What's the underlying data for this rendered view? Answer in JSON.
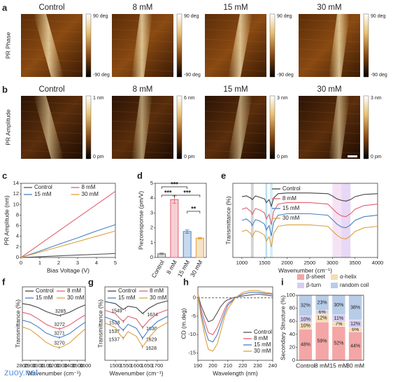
{
  "image_rows": [
    {
      "panel": "a",
      "ylabel": "PR Phase",
      "images": [
        {
          "title": "Control",
          "scale_max": "90 deg",
          "scale_min": "-90 deg"
        },
        {
          "title": "8 mM",
          "scale_max": "90 deg",
          "scale_min": "-90 deg"
        },
        {
          "title": "15 mM",
          "scale_max": "90 deg",
          "scale_min": "-90 deg"
        },
        {
          "title": "30 mM",
          "scale_max": "90 deg",
          "scale_min": "-90 deg"
        }
      ]
    },
    {
      "panel": "b",
      "ylabel": "PR Amplitude",
      "images": [
        {
          "title": "Control",
          "scale_max": "1 nm",
          "scale_min": "0 pm"
        },
        {
          "title": "8 mM",
          "scale_max": "6 nm",
          "scale_min": "0 pm"
        },
        {
          "title": "15 mM",
          "scale_max": "3 nm",
          "scale_min": "0 pm"
        },
        {
          "title": "30 mM",
          "scale_max": "3 nm",
          "scale_min": "0 pm"
        }
      ]
    }
  ],
  "chart_data": [
    {
      "panel": "c",
      "type": "line",
      "xlabel": "Bias Voltage (V)",
      "ylabel": "PR Amplitude (nm)",
      "x": [
        0,
        1,
        2,
        3,
        4,
        5
      ],
      "xlim": [
        0,
        5
      ],
      "xticks": [
        0,
        1,
        2,
        3,
        4,
        5
      ],
      "ylim": [
        0,
        14
      ],
      "yticks": [
        0,
        2,
        4,
        6,
        8,
        10,
        12,
        14
      ],
      "legend": "top-left",
      "series": [
        {
          "name": "Control",
          "color": "#555555",
          "values": [
            0,
            0.15,
            0.3,
            0.45,
            0.6,
            0.75
          ]
        },
        {
          "name": "8 mM",
          "color": "#e06070",
          "values": [
            0,
            2.5,
            5,
            7.5,
            10,
            12.5
          ]
        },
        {
          "name": "15 mM",
          "color": "#4a80c0",
          "values": [
            0,
            1.2,
            2.5,
            3.7,
            5,
            6.2
          ]
        },
        {
          "name": "30 mM",
          "color": "#e0a040",
          "values": [
            0,
            1,
            2,
            3,
            4,
            5
          ]
        }
      ]
    },
    {
      "panel": "d",
      "type": "bar",
      "ylabel": "Piezoresponse (pm/V)",
      "categories": [
        "Control",
        "8 mM",
        "15 mM",
        "30 mM"
      ],
      "values": [
        0.25,
        3.9,
        1.75,
        1.3
      ],
      "errors": [
        0.05,
        0.25,
        0.12,
        0.06
      ],
      "colors": [
        "#777777",
        "#e06070",
        "#4a80c0",
        "#e0a040"
      ],
      "ylim": [
        0,
        5
      ],
      "yticks": [
        0,
        1,
        2,
        3,
        4,
        5
      ],
      "significance": [
        {
          "from": "Control",
          "to": "8 mM",
          "label": "***"
        },
        {
          "from": "Control",
          "to": "15 mM",
          "label": "***"
        },
        {
          "from": "8 mM",
          "to": "30 mM",
          "label": "***"
        },
        {
          "from": "15 mM",
          "to": "30 mM",
          "label": "**"
        }
      ]
    },
    {
      "panel": "e",
      "type": "line",
      "xlabel": "Wavenumber (cm⁻¹)",
      "ylabel": "Transmittance (%)",
      "x": [
        1000,
        1100,
        1200,
        1230,
        1300,
        1400,
        1500,
        1540,
        1600,
        1650,
        1700,
        1800,
        2000,
        2500,
        2900,
        3000,
        3100,
        3200,
        3300,
        3400,
        3500,
        3700,
        4000
      ],
      "xlim": [
        800,
        4000
      ],
      "xticks": [
        1000,
        1500,
        2000,
        2500,
        3000,
        3500,
        4000
      ],
      "ylim": [
        0,
        10
      ],
      "legend": "right",
      "bands": [
        {
          "from": 1200,
          "to": 1260,
          "color": "#c8c8c8"
        },
        {
          "from": 1520,
          "to": 1560,
          "color": "#a8d8e8"
        },
        {
          "from": 1620,
          "to": 1680,
          "color": "#cde9f2"
        },
        {
          "from": 3000,
          "to": 3200,
          "color": "#f3dcf3"
        },
        {
          "from": 3200,
          "to": 3400,
          "color": "#e2cdf2"
        }
      ],
      "series": [
        {
          "name": "Control",
          "color": "#444444",
          "values": [
            8.2,
            8.3,
            8.0,
            7.8,
            8.3,
            8.1,
            7.9,
            7.4,
            7.8,
            6.9,
            8.0,
            8.6,
            8.7,
            8.7,
            8.6,
            8.3,
            7.9,
            7.7,
            7.6,
            7.8,
            8.2,
            8.5,
            8.6
          ]
        },
        {
          "name": "8 mM",
          "color": "#e06070",
          "values": [
            6.5,
            6.7,
            6.2,
            5.8,
            6.6,
            6.4,
            6.0,
            5.2,
            5.8,
            4.4,
            6.2,
            7.2,
            7.4,
            7.4,
            7.2,
            6.6,
            6.0,
            5.6,
            5.5,
            5.9,
            6.5,
            7.0,
            7.2
          ]
        },
        {
          "name": "15 mM",
          "color": "#4a80c0",
          "values": [
            5.0,
            5.2,
            4.7,
            4.3,
            5.1,
            4.9,
            4.5,
            3.7,
            4.3,
            2.9,
            4.7,
            5.7,
            5.9,
            5.9,
            5.7,
            5.1,
            4.5,
            4.1,
            4.0,
            4.4,
            5.0,
            5.5,
            5.7
          ]
        },
        {
          "name": "30 mM",
          "color": "#e0a040",
          "values": [
            3.5,
            3.7,
            3.2,
            2.8,
            3.6,
            3.4,
            3.0,
            2.2,
            2.8,
            1.4,
            3.2,
            4.2,
            4.4,
            4.4,
            4.2,
            3.6,
            3.0,
            2.6,
            2.5,
            2.9,
            3.5,
            4.0,
            4.2
          ]
        }
      ]
    },
    {
      "panel": "f",
      "type": "line",
      "xlabel": "Wavenumber (cm⁻¹)",
      "ylabel": "Transmittance (%)",
      "x": [
        2800,
        2900,
        3000,
        3100,
        3200,
        3270,
        3300,
        3400,
        3500,
        3600
      ],
      "xlim": [
        2800,
        3600
      ],
      "xticks": [
        2800,
        2900,
        3000,
        3100,
        3200,
        3300,
        3400,
        3500,
        3600
      ],
      "ylim": [
        0,
        11
      ],
      "legend": "top",
      "series": [
        {
          "name": "Control",
          "color": "#444444",
          "values": [
            8.5,
            8.3,
            7.9,
            7.3,
            6.9,
            6.7,
            6.8,
            7.2,
            7.8,
            8.3
          ],
          "peaks": [
            3285
          ]
        },
        {
          "name": "8 mM",
          "color": "#e06070",
          "values": [
            7.2,
            6.9,
            6.2,
            5.4,
            4.9,
            4.7,
            4.8,
            5.3,
            6.1,
            6.8
          ],
          "peaks": [
            3272
          ]
        },
        {
          "name": "15 mM",
          "color": "#4a80c0",
          "values": [
            6.0,
            5.7,
            5.0,
            4.1,
            3.6,
            3.4,
            3.5,
            4.0,
            4.9,
            5.7
          ],
          "peaks": [
            3271
          ]
        },
        {
          "name": "30 mM",
          "color": "#e0a040",
          "values": [
            5.0,
            4.6,
            3.7,
            2.7,
            2.1,
            1.9,
            2.0,
            2.6,
            3.7,
            4.7
          ],
          "peaks": [
            3270
          ]
        }
      ]
    },
    {
      "panel": "g",
      "type": "line",
      "xlabel": "Wavenumber (cm⁻¹)",
      "ylabel": "Transmittance (%)",
      "x": [
        1450,
        1500,
        1520,
        1538,
        1560,
        1600,
        1630,
        1660,
        1700,
        1750
      ],
      "xlim": [
        1450,
        1750
      ],
      "xticks": [
        1500,
        1550,
        1600,
        1650,
        1700
      ],
      "ylim": [
        0,
        11
      ],
      "legend": "top",
      "series": [
        {
          "name": "Control",
          "color": "#444444",
          "values": [
            8.8,
            8.5,
            8.0,
            7.6,
            8.1,
            7.9,
            7.0,
            7.8,
            8.5,
            8.9
          ],
          "peaks": [
            1549,
            1634
          ]
        },
        {
          "name": "8 mM",
          "color": "#e06070",
          "values": [
            7.5,
            7.0,
            6.3,
            5.8,
            6.6,
            6.2,
            4.9,
            6.0,
            7.0,
            7.6
          ],
          "peaks": [
            1538,
            1630
          ]
        },
        {
          "name": "15 mM",
          "color": "#4a80c0",
          "values": [
            6.5,
            5.9,
            5.0,
            4.5,
            5.4,
            4.8,
            3.3,
            4.6,
            5.8,
            6.6
          ],
          "peaks": [
            1537,
            1629
          ]
        },
        {
          "name": "30 mM",
          "color": "#e0a040",
          "values": [
            5.6,
            4.9,
            3.9,
            3.3,
            4.3,
            3.6,
            2.0,
            3.4,
            4.8,
            5.7
          ],
          "peaks": [
            1537,
            1628
          ]
        }
      ]
    },
    {
      "panel": "h",
      "type": "line",
      "xlabel": "Wavelength (nm)",
      "ylabel": "CD (m.deg)",
      "x": [
        190,
        192,
        195,
        197,
        200,
        203,
        205,
        208,
        210,
        215,
        220,
        225,
        230,
        235,
        240
      ],
      "xlim": [
        190,
        240
      ],
      "xticks": [
        190,
        200,
        210,
        220,
        230,
        240
      ],
      "ylim": [
        -17,
        3
      ],
      "yticks": [
        -15,
        -10,
        -5,
        0
      ],
      "reference_line": 0,
      "legend": "bottom-right",
      "series": [
        {
          "name": "Control",
          "color": "#555555",
          "values": [
            1,
            -2,
            -5,
            -6.5,
            -6,
            -4,
            -2.5,
            -1,
            -0.5,
            0.2,
            0.5,
            0.8,
            1,
            0.8,
            0.5
          ]
        },
        {
          "name": "8 mM",
          "color": "#e06070",
          "values": [
            1,
            -3,
            -7,
            -9.5,
            -10,
            -8,
            -6,
            -3,
            -1.5,
            0,
            1,
            1.5,
            1.5,
            1.2,
            1
          ]
        },
        {
          "name": "15 mM",
          "color": "#4a80c0",
          "values": [
            1,
            -4,
            -9,
            -11.5,
            -12,
            -10,
            -7.5,
            -4,
            -2,
            0,
            1,
            1.5,
            1.5,
            1.2,
            1
          ]
        },
        {
          "name": "30 mM",
          "color": "#e0a040",
          "values": [
            1,
            -5,
            -11,
            -14,
            -14.5,
            -12.5,
            -9.5,
            -5,
            -3,
            0,
            1.5,
            2,
            2,
            1.5,
            1.2
          ]
        }
      ]
    },
    {
      "panel": "i",
      "type": "stacked_bar",
      "ylabel": "Secondary Structure (%)",
      "categories": [
        "Control",
        "8 mM",
        "15 mM",
        "30 mM"
      ],
      "ylim": [
        0,
        100
      ],
      "yticks": [
        0,
        20,
        40,
        60,
        80,
        100
      ],
      "series": [
        {
          "name": "β-sheet",
          "color": "#f4a6a6",
          "values": [
            48,
            59,
            52,
            44
          ],
          "value_labels": [
            "48%",
            "59%",
            "52%",
            "44%"
          ]
        },
        {
          "name": "α-helix",
          "color": "#f4dcb4",
          "values": [
            10,
            12,
            7,
            6
          ],
          "value_labels": [
            "10%",
            "12%",
            "7%",
            "6%"
          ]
        },
        {
          "name": "β-turn",
          "color": "#d6cdf0",
          "values": [
            10,
            6,
            11,
            12
          ],
          "value_labels": [
            "10%",
            "6%",
            "11%",
            "12%"
          ]
        },
        {
          "name": "random coil",
          "color": "#b8cce8",
          "values": [
            32,
            23,
            30,
            38
          ],
          "value_labels": [
            "32%",
            "23%",
            "30%",
            "38%"
          ]
        }
      ]
    }
  ],
  "watermark": "zuoy.net"
}
